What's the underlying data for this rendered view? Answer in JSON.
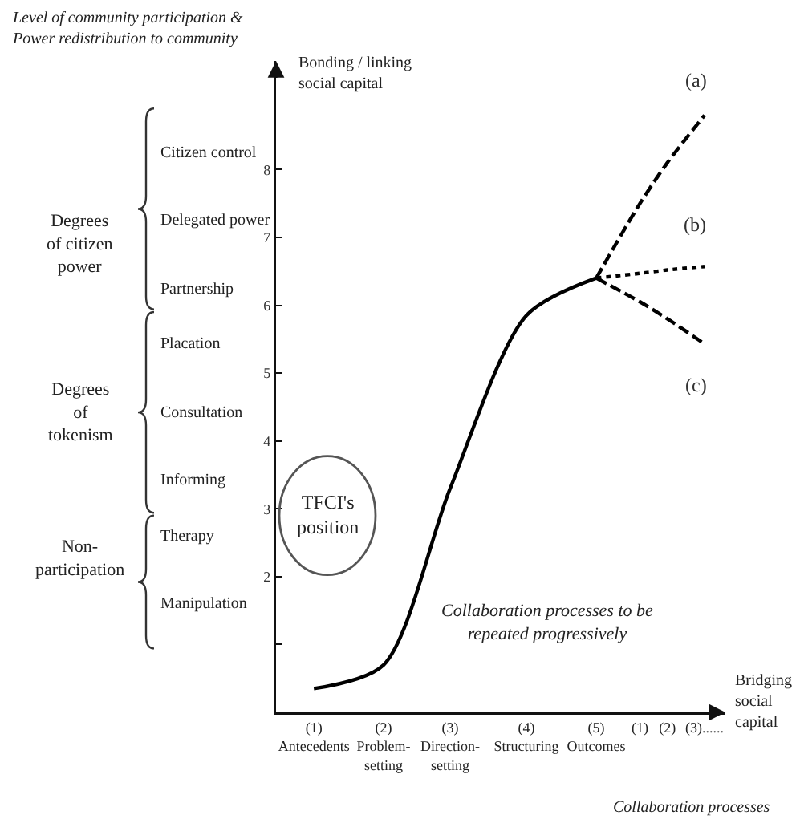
{
  "chart_data": {
    "type": "line",
    "title": "Level of community participation &\nPower redistribution to community",
    "ylabel": "Bonding / linking\nsocial capital",
    "xlabel": "Bridging\nsocial\ncapital",
    "categories": [
      "(1)\nAntecedents",
      "(2)\nProblem-\nsetting",
      "(3)\nDirection-\nsetting",
      "(4)\nStructuring",
      "(5)\nOutcomes",
      "(1)",
      "(2)",
      "(3)......"
    ],
    "ylim": [
      0,
      9.6
    ],
    "yticks": [
      {
        "value": 1,
        "label": null
      },
      2,
      3,
      4,
      5,
      6,
      7,
      8
    ],
    "series": [
      {
        "color": "#000000",
        "line_style": "solid",
        "values": [
          0.35,
          0.7,
          3.3,
          5.85,
          6.4,
          null,
          null,
          null
        ]
      },
      {
        "name": "(a)",
        "color": "#000000",
        "line_style": "dashed",
        "values": [
          null,
          null,
          null,
          null,
          6.4,
          7.5,
          8.1,
          8.8
        ]
      },
      {
        "name": "(b)",
        "color": "#000000",
        "line_style": "dotted",
        "values": [
          null,
          null,
          null,
          null,
          6.4,
          6.47,
          6.52,
          6.57
        ]
      },
      {
        "name": "(c)",
        "color": "#000000",
        "line_style": "dashed",
        "values": [
          null,
          null,
          null,
          null,
          6.4,
          6.05,
          5.8,
          5.43
        ]
      }
    ],
    "annotations": [
      "TFCI's\nposition",
      "Collaboration processes to be\nrepeated progressively",
      "Collaboration processes",
      "Citizen control",
      "Delegated power",
      "Partnership",
      "Placation",
      "Consultation",
      "Informing",
      "Therapy",
      "Manipulation",
      "Degrees\nof citizen\npower",
      "Degrees\nof\ntokenism",
      "Non-\nparticipation"
    ],
    "grid": false,
    "legend": false,
    "marker": "none"
  }
}
